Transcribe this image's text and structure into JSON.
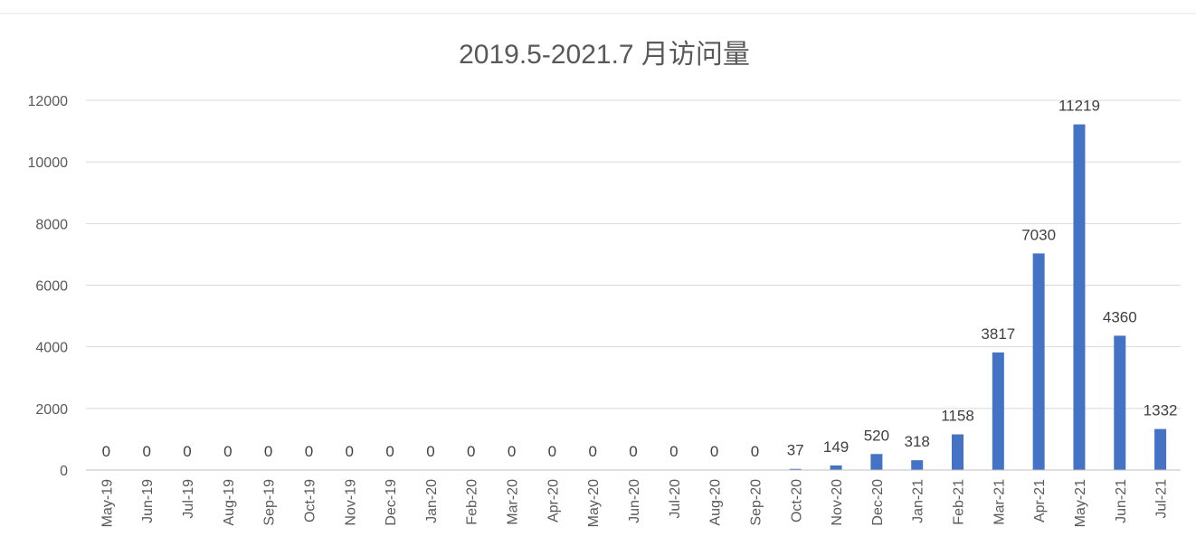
{
  "chart_data": {
    "type": "bar",
    "title": "2019.5-2021.7 月访问量",
    "xlabel": "",
    "ylabel": "",
    "ylim": [
      0,
      12000
    ],
    "yticks": [
      0,
      2000,
      4000,
      6000,
      8000,
      10000,
      12000
    ],
    "grid": true,
    "legend": "none",
    "bar_color": "#4472c4",
    "categories": [
      "May-19",
      "Jun-19",
      "Jul-19",
      "Aug-19",
      "Sep-19",
      "Oct-19",
      "Nov-19",
      "Dec-19",
      "Jan-20",
      "Feb-20",
      "Mar-20",
      "Apr-20",
      "May-20",
      "Jun-20",
      "Jul-20",
      "Aug-20",
      "Sep-20",
      "Oct-20",
      "Nov-20",
      "Dec-20",
      "Jan-21",
      "Feb-21",
      "Mar-21",
      "Apr-21",
      "May-21",
      "Jun-21",
      "Jul-21"
    ],
    "values": [
      0,
      0,
      0,
      0,
      0,
      0,
      0,
      0,
      0,
      0,
      0,
      0,
      0,
      0,
      0,
      0,
      0,
      37,
      149,
      520,
      318,
      1158,
      3817,
      7030,
      11219,
      4360,
      1332
    ]
  }
}
